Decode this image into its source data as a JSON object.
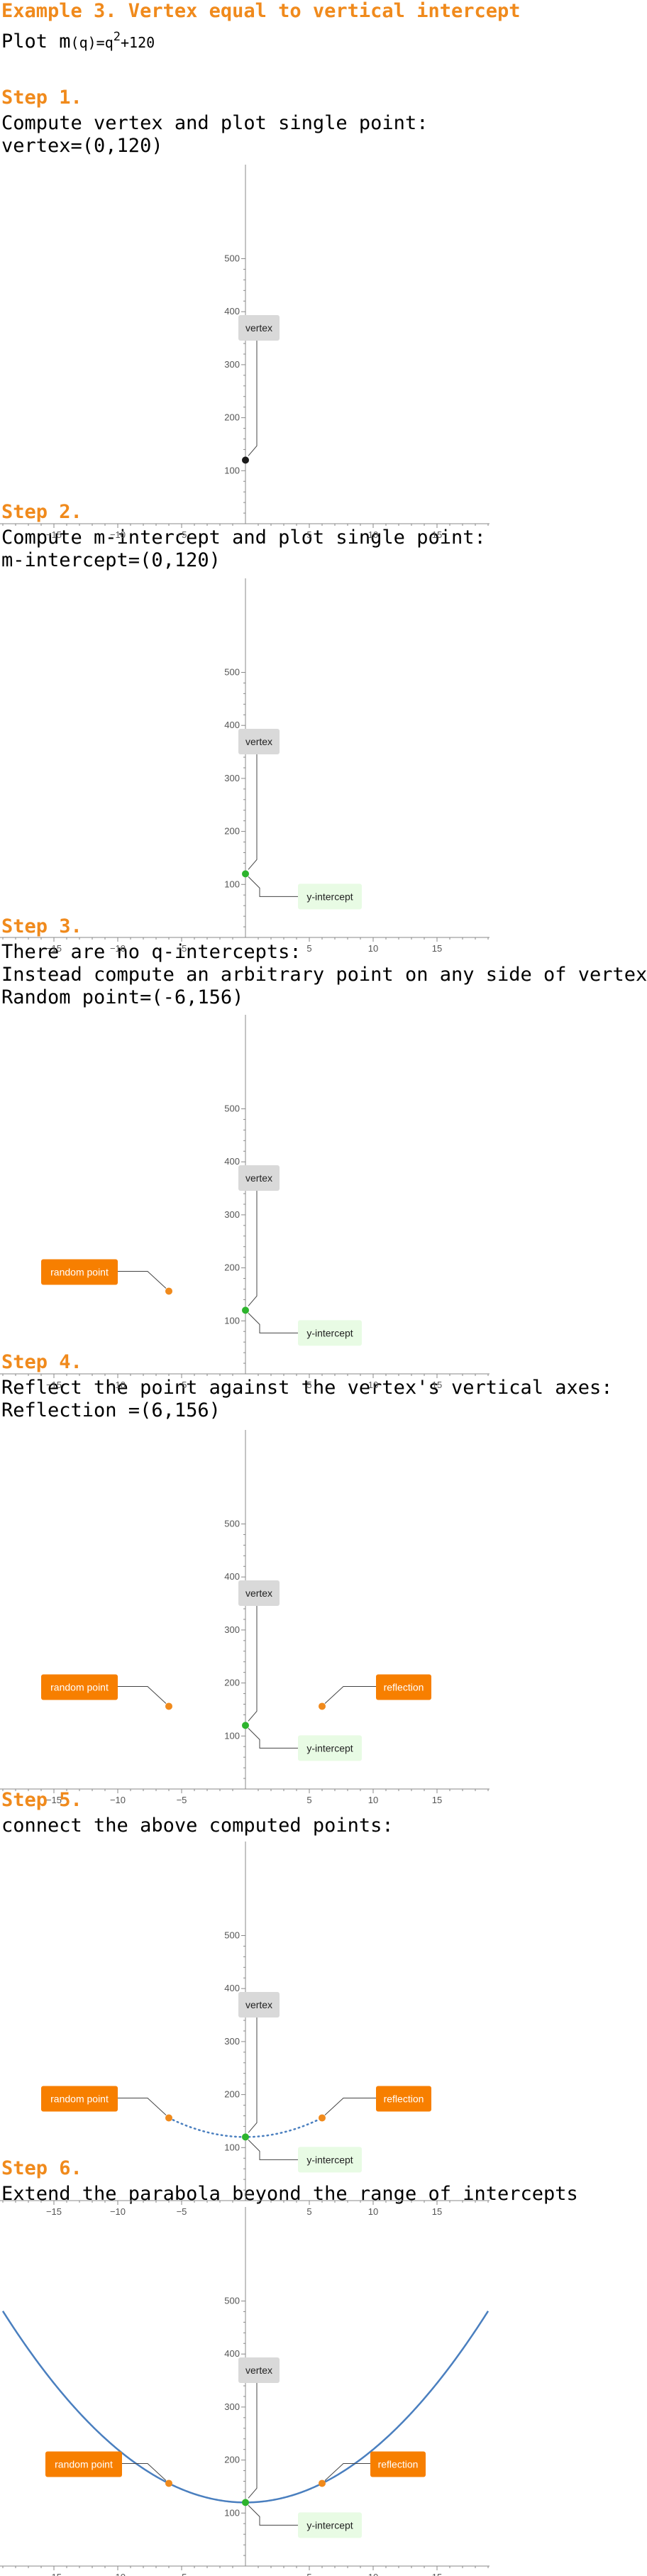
{
  "title": "Example 3. Vertex equal to vertical intercept",
  "plot_line": {
    "prefix": "Plot m",
    "arg": "(q)",
    "eq": "=q",
    "exp": "2",
    "rest": "+120"
  },
  "steps": [
    {
      "label": "Step 1.",
      "lines": [
        "Compute vertex and plot single point:",
        "vertex=(0,120)"
      ]
    },
    {
      "label": "Step 2.",
      "lines": [
        "Compute m-intercept and plot single point:",
        "m-intercept=(0,120)"
      ]
    },
    {
      "label": "Step 3.",
      "lines": [
        "There are no q-intercepts:",
        "Instead compute an arbitrary point on any side of vertex:",
        "Random point=(-6,156)"
      ]
    },
    {
      "label": "Step 4.",
      "lines": [
        "Reflect the point against the vertex's vertical axes:",
        "Reflection =(6,156)"
      ]
    },
    {
      "label": "Step 5.",
      "lines": [
        "connect the above computed points:"
      ]
    },
    {
      "label": "Step 6.",
      "lines": [
        "Extend the parabola beyond the range of intercepts"
      ]
    }
  ],
  "labels": {
    "vertex": "vertex",
    "y_intercept": "y-intercept",
    "random_point": "random point",
    "reflection": "reflection"
  },
  "colors": {
    "accent": "#f08a1c",
    "point_orange": "#f08a1c",
    "point_green": "#2db42d",
    "point_black": "#1a1a1a",
    "curve": "#4a7fbf",
    "vertex_label_bg": "#d9d9d9",
    "yint_label_bg": "#e8fbe4",
    "orange_label_bg": "#f77f00"
  },
  "chart_data": [
    {
      "type": "scatter",
      "x_ticks": [
        -15,
        -10,
        -5,
        5,
        10,
        15
      ],
      "y_ticks": [
        100,
        200,
        300,
        400,
        500
      ],
      "xlim": [
        -19,
        19
      ],
      "ylim": [
        -5,
        520
      ],
      "points": [
        {
          "x": 0,
          "y": 120,
          "label": "vertex",
          "color": "#1a1a1a"
        }
      ]
    },
    {
      "type": "scatter",
      "x_ticks": [
        -15,
        -10,
        -5,
        5,
        10,
        15
      ],
      "y_ticks": [
        100,
        200,
        300,
        400,
        500
      ],
      "xlim": [
        -19,
        19
      ],
      "ylim": [
        -5,
        520
      ],
      "points": [
        {
          "x": 0,
          "y": 120,
          "label": "vertex",
          "color": "#2db42d"
        },
        {
          "x": 0,
          "y": 120,
          "label": "y-intercept",
          "color": "#2db42d"
        }
      ]
    },
    {
      "type": "scatter",
      "x_ticks": [
        -15,
        -10,
        -5,
        5,
        10,
        15
      ],
      "y_ticks": [
        100,
        200,
        300,
        400,
        500
      ],
      "xlim": [
        -19,
        19
      ],
      "ylim": [
        -5,
        520
      ],
      "points": [
        {
          "x": 0,
          "y": 120,
          "label": "vertex"
        },
        {
          "x": 0,
          "y": 120,
          "label": "y-intercept"
        },
        {
          "x": -6,
          "y": 156,
          "label": "random point"
        }
      ]
    },
    {
      "type": "scatter",
      "x_ticks": [
        -15,
        -10,
        -5,
        5,
        10,
        15
      ],
      "y_ticks": [
        100,
        200,
        300,
        400,
        500
      ],
      "xlim": [
        -19,
        19
      ],
      "ylim": [
        -5,
        520
      ],
      "points": [
        {
          "x": 0,
          "y": 120,
          "label": "vertex"
        },
        {
          "x": 0,
          "y": 120,
          "label": "y-intercept"
        },
        {
          "x": -6,
          "y": 156,
          "label": "random point"
        },
        {
          "x": 6,
          "y": 156,
          "label": "reflection"
        }
      ]
    },
    {
      "type": "line",
      "x_ticks": [
        -15,
        -10,
        -5,
        5,
        10,
        15
      ],
      "y_ticks": [
        100,
        200,
        300,
        400,
        500
      ],
      "xlim": [
        -19,
        19
      ],
      "ylim": [
        -5,
        520
      ],
      "function": "q^2+120",
      "curve_range": [
        -6,
        6
      ],
      "curve_style": "dotted",
      "points": [
        {
          "x": 0,
          "y": 120,
          "label": "vertex"
        },
        {
          "x": 0,
          "y": 120,
          "label": "y-intercept"
        },
        {
          "x": -6,
          "y": 156,
          "label": "random point"
        },
        {
          "x": 6,
          "y": 156,
          "label": "reflection"
        }
      ]
    },
    {
      "type": "line",
      "x_ticks": [
        -15,
        -10,
        -5,
        5,
        10,
        15
      ],
      "y_ticks": [
        100,
        200,
        300,
        400,
        500
      ],
      "xlim": [
        -19,
        19
      ],
      "ylim": [
        -5,
        520
      ],
      "function": "q^2+120",
      "curve_range": [
        -19,
        19
      ],
      "curve_style": "solid",
      "points": [
        {
          "x": 0,
          "y": 120,
          "label": "vertex"
        },
        {
          "x": 0,
          "y": 120,
          "label": "y-intercept"
        },
        {
          "x": -6,
          "y": 156,
          "label": "random point"
        },
        {
          "x": 6,
          "y": 156,
          "label": "reflection"
        }
      ]
    }
  ]
}
